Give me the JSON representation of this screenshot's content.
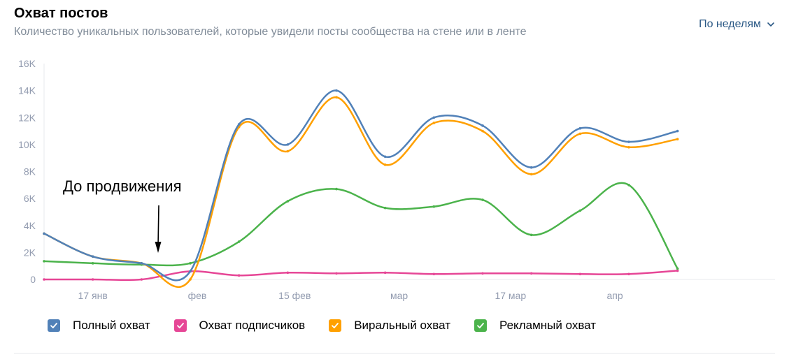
{
  "header": {
    "title": "Охват постов",
    "subtitle": "Количество уникальных пользователей, которые увидели посты сообщества на стене или в ленте",
    "period_label": "По неделям"
  },
  "annotation": {
    "text": "До продвижения"
  },
  "chart_data": {
    "type": "line",
    "x": [
      "2020-01-10",
      "2020-01-17",
      "2020-01-24",
      "2020-01-31",
      "2020-02-07",
      "2020-02-14",
      "2020-02-21",
      "2020-02-28",
      "2020-03-06",
      "2020-03-13",
      "2020-03-20",
      "2020-03-27",
      "2020-04-03",
      "2020-04-10",
      "2020-04-17",
      "2020-04-24"
    ],
    "x_ticks": [
      {
        "date": "2020-01-17",
        "label": "17 янв"
      },
      {
        "date": "2020-02-01",
        "label": "фев"
      },
      {
        "date": "2020-02-15",
        "label": "15 фев"
      },
      {
        "date": "2020-03-01",
        "label": "мар"
      },
      {
        "date": "2020-03-17",
        "label": "17 мар"
      },
      {
        "date": "2020-04-01",
        "label": "апр"
      }
    ],
    "yticks": [
      {
        "value": 0,
        "label": "0"
      },
      {
        "value": 2000,
        "label": "2K"
      },
      {
        "value": 4000,
        "label": "4K"
      },
      {
        "value": 6000,
        "label": "6K"
      },
      {
        "value": 8000,
        "label": "8K"
      },
      {
        "value": 10000,
        "label": "10K"
      },
      {
        "value": 12000,
        "label": "12K"
      },
      {
        "value": 14000,
        "label": "14K"
      },
      {
        "value": 16000,
        "label": "16K"
      }
    ],
    "ylim": [
      0,
      16000
    ],
    "xlim": [
      "2020-01-10",
      "2020-04-24"
    ],
    "grid": false,
    "legend_position": "bottom",
    "series": [
      {
        "name": "Полный охват",
        "color": "#5181b8",
        "values": [
          3400,
          1700,
          1200,
          600,
          11500,
          10000,
          14000,
          9100,
          12000,
          11400,
          8300,
          11200,
          10200,
          11000,
          null,
          null
        ]
      },
      {
        "name": "Охват подписчиков",
        "color": "#e64696",
        "values": [
          0,
          0,
          0,
          600,
          300,
          500,
          450,
          500,
          400,
          450,
          450,
          400,
          400,
          650,
          null,
          null
        ]
      },
      {
        "name": "Виральный охват",
        "color": "#ffa000",
        "values": [
          3400,
          1700,
          1200,
          0,
          11300,
          9500,
          13500,
          8500,
          11600,
          11000,
          7800,
          10800,
          9800,
          10400,
          null,
          null
        ]
      },
      {
        "name": "Рекламный охват",
        "color": "#4bb34b",
        "values": [
          1350,
          1200,
          1100,
          1200,
          2800,
          5800,
          6700,
          5300,
          5400,
          5900,
          3300,
          5100,
          7000,
          800,
          null,
          null
        ]
      }
    ]
  },
  "legend": {
    "items": [
      {
        "label": "Полный охват",
        "color": "#5181b8",
        "checked": true
      },
      {
        "label": "Охват подписчиков",
        "color": "#e64696",
        "checked": true
      },
      {
        "label": "Виральный охват",
        "color": "#ffa000",
        "checked": true
      },
      {
        "label": "Рекламный охват",
        "color": "#4bb34b",
        "checked": true
      }
    ]
  }
}
